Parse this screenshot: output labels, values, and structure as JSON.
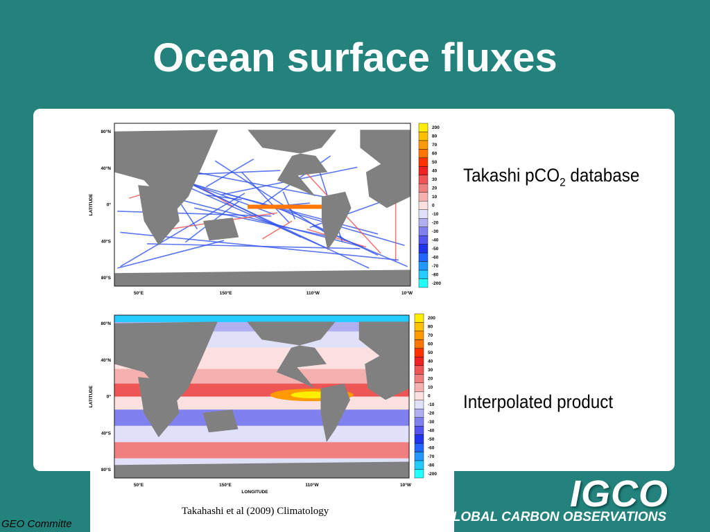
{
  "header": {
    "title": "Ocean surface fluxes"
  },
  "maps": [
    {
      "label": {
        "prefix": "Takashi pCO",
        "subscript": "2",
        "suffix": " database"
      },
      "y_axis_label": "LATITUDE",
      "lat_ticks": [
        "80°N",
        "40°N",
        "0°",
        "40°S",
        "80°S"
      ],
      "lon_ticks": [
        "50°E",
        "150°E",
        "110°W",
        "10°W"
      ],
      "colorbar": [
        200,
        80,
        70,
        60,
        50,
        40,
        30,
        20,
        10,
        0,
        -10,
        -20,
        -30,
        -40,
        -50,
        -60,
        -70,
        -80,
        -200
      ]
    },
    {
      "label": {
        "text": "Interpolated product"
      },
      "y_axis_label": "LATITUDE",
      "x_axis_label": "LONGITUDE",
      "lat_ticks": [
        "80°N",
        "40°N",
        "0°",
        "40°S",
        "80°S"
      ],
      "lon_ticks": [
        "50°E",
        "150°E",
        "110°W",
        "10°W"
      ],
      "colorbar": [
        200,
        80,
        70,
        60,
        50,
        40,
        30,
        20,
        10,
        0,
        -10,
        -20,
        -30,
        -40,
        -50,
        -60,
        -70,
        -80,
        -200
      ]
    }
  ],
  "caption": "Takahashi et al (2009) Climatology",
  "footer": {
    "text": "GEO Committe",
    "logo": "IGCO",
    "logo_tagline": "GLOBAL CARBON OBSERVATIONS"
  }
}
